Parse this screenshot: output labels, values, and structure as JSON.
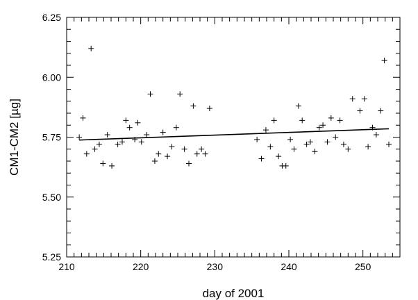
{
  "chart_data": {
    "type": "scatter",
    "xlabel": "day of 2001",
    "ylabel": "CM1-CM2 [µg]",
    "xlim": [
      210,
      255
    ],
    "ylim": [
      5.25,
      6.25
    ],
    "x_ticks": [
      210,
      220,
      230,
      240,
      250
    ],
    "x_tick_labels": [
      "210",
      "220",
      "230",
      "240",
      "250"
    ],
    "y_ticks": [
      5.25,
      5.5,
      5.75,
      6.0,
      6.25
    ],
    "y_tick_labels": [
      "5.25",
      "5.50",
      "5.75",
      "6.00",
      "6.25"
    ],
    "marker": "+",
    "grid": false,
    "series": [
      {
        "marker": "+",
        "points": [
          [
            211.7,
            5.75
          ],
          [
            212.2,
            5.83
          ],
          [
            212.7,
            5.68
          ],
          [
            213.3,
            6.12
          ],
          [
            213.8,
            5.7
          ],
          [
            214.4,
            5.72
          ],
          [
            214.9,
            5.64
          ],
          [
            215.5,
            5.76
          ],
          [
            216.1,
            5.63
          ],
          [
            216.9,
            5.72
          ],
          [
            217.5,
            5.73
          ],
          [
            218.0,
            5.82
          ],
          [
            218.5,
            5.79
          ],
          [
            219.2,
            5.74
          ],
          [
            219.6,
            5.81
          ],
          [
            220.1,
            5.73
          ],
          [
            220.8,
            5.76
          ],
          [
            221.3,
            5.93
          ],
          [
            221.9,
            5.65
          ],
          [
            222.4,
            5.68
          ],
          [
            223.0,
            5.77
          ],
          [
            223.6,
            5.67
          ],
          [
            224.2,
            5.71
          ],
          [
            224.8,
            5.79
          ],
          [
            225.3,
            5.93
          ],
          [
            225.9,
            5.7
          ],
          [
            226.5,
            5.64
          ],
          [
            227.1,
            5.88
          ],
          [
            227.6,
            5.68
          ],
          [
            228.2,
            5.7
          ],
          [
            228.7,
            5.68
          ],
          [
            229.3,
            5.87
          ],
          [
            235.7,
            5.74
          ],
          [
            236.3,
            5.66
          ],
          [
            236.9,
            5.78
          ],
          [
            237.5,
            5.71
          ],
          [
            238.0,
            5.82
          ],
          [
            238.6,
            5.67
          ],
          [
            239.1,
            5.63
          ],
          [
            239.6,
            5.63
          ],
          [
            240.2,
            5.74
          ],
          [
            240.7,
            5.7
          ],
          [
            241.3,
            5.88
          ],
          [
            241.8,
            5.82
          ],
          [
            242.4,
            5.72
          ],
          [
            242.9,
            5.73
          ],
          [
            243.5,
            5.69
          ],
          [
            244.1,
            5.79
          ],
          [
            244.6,
            5.8
          ],
          [
            245.2,
            5.73
          ],
          [
            245.7,
            5.83
          ],
          [
            246.3,
            5.75
          ],
          [
            246.9,
            5.82
          ],
          [
            247.4,
            5.72
          ],
          [
            248.0,
            5.7
          ],
          [
            248.6,
            5.91
          ],
          [
            249.6,
            5.86
          ],
          [
            250.2,
            5.91
          ],
          [
            250.7,
            5.71
          ],
          [
            251.3,
            5.79
          ],
          [
            251.8,
            5.76
          ],
          [
            252.4,
            5.86
          ],
          [
            252.9,
            6.07
          ],
          [
            253.5,
            5.72
          ]
        ]
      }
    ],
    "trend_line": {
      "x": [
        211.7,
        253.5
      ],
      "y": [
        5.738,
        5.785
      ]
    }
  }
}
